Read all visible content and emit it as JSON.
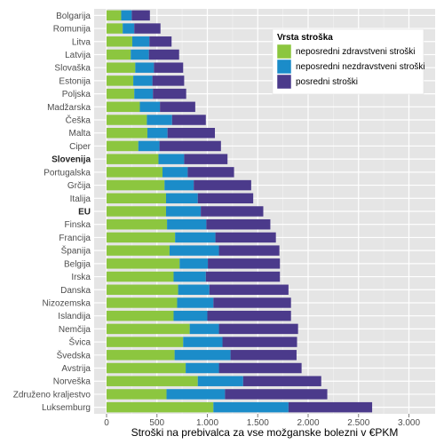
{
  "chart_data": {
    "type": "bar",
    "orientation": "horizontal",
    "stacked": true,
    "xlabel": "Stroški na prebivalca za vse možganske bolezni v €PKM",
    "xlim": [
      0,
      3000
    ],
    "xticks": [
      0,
      500,
      1000,
      1500,
      2000,
      2500,
      3000
    ],
    "xtick_labels": [
      "0",
      "500",
      "1.000",
      "1.500",
      "2.000",
      "2.500",
      "3.000"
    ],
    "grid": true,
    "legend_title": "Vrsta stroška",
    "legend_position": "top-right",
    "categories": [
      "Bolgarija",
      "Romunija",
      "Litva",
      "Latvija",
      "Slovaška",
      "Estonija",
      "Poljska",
      "Madžarska",
      "Češka",
      "Malta",
      "Ciper",
      "Slovenija",
      "Portugalska",
      "Grčija",
      "Italija",
      "EU",
      "Finska",
      "Francija",
      "Španija",
      "Belgija",
      "Irska",
      "Danska",
      "Nizozemska",
      "Islandija",
      "Nemčija",
      "Švica",
      "Švedska",
      "Avstrija",
      "Norveška",
      "Združeno kraljestvo",
      "Luksemburg"
    ],
    "bold_categories": [
      "Slovenija",
      "EU"
    ],
    "series": [
      {
        "name": "neposredni zdravstveni stroški",
        "color": "#8cc63f",
        "values": [
          145,
          160,
          255,
          240,
          285,
          265,
          275,
          330,
          400,
          405,
          315,
          515,
          555,
          575,
          590,
          590,
          600,
          680,
          625,
          725,
          665,
          710,
          700,
          665,
          825,
          760,
          675,
          785,
          905,
          595,
          1060
        ]
      },
      {
        "name": "neposredni nezdravstveni stroški",
        "color": "#1b8cc9",
        "values": [
          105,
          115,
          170,
          180,
          185,
          190,
          185,
          200,
          250,
          200,
          210,
          255,
          250,
          290,
          315,
          345,
          390,
          400,
          490,
          280,
          320,
          310,
          360,
          335,
          290,
          390,
          555,
          330,
          450,
          580,
          745
        ]
      },
      {
        "name": "posredni stroški",
        "color": "#4b3a8b",
        "values": [
          180,
          260,
          220,
          300,
          290,
          315,
          330,
          350,
          335,
          470,
          610,
          430,
          460,
          570,
          550,
          620,
          635,
          600,
          600,
          715,
          735,
          785,
          770,
          830,
          785,
          740,
          655,
          820,
          775,
          1015,
          830
        ]
      }
    ]
  }
}
